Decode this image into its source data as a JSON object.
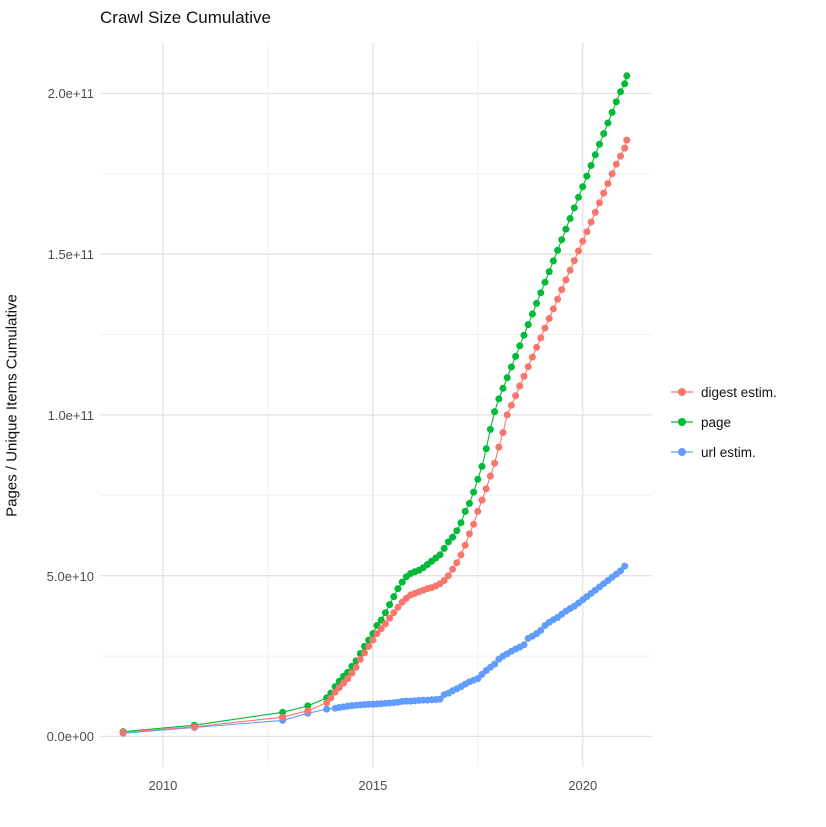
{
  "title": "Crawl Size Cumulative",
  "y_axis": {
    "label": "Pages / Unique Items Cumulative",
    "ticks": [
      {
        "label": "0.0e+00",
        "value_e10": 0
      },
      {
        "label": "5.0e+10",
        "value_e10": 5
      },
      {
        "label": "1.0e+11",
        "value_e10": 10
      },
      {
        "label": "1.5e+11",
        "value_e10": 15
      },
      {
        "label": "2.0e+11",
        "value_e10": 20
      }
    ]
  },
  "x_axis": {
    "ticks": [
      {
        "label": "2010",
        "value": 2010
      },
      {
        "label": "2015",
        "value": 2015
      },
      {
        "label": "2020",
        "value": 2020
      }
    ]
  },
  "legend": {
    "position": "right",
    "items": [
      {
        "label": "digest estim.",
        "color": "#F8766D"
      },
      {
        "label": "page",
        "color": "#00BA38"
      },
      {
        "label": "url estim.",
        "color": "#619CFF"
      }
    ]
  },
  "chart_data": {
    "type": "line",
    "title": "Crawl Size Cumulative",
    "xlabel": "",
    "ylabel": "Pages / Unique Items Cumulative",
    "value_scale": "values are in units of 1e10 pages/items",
    "xlim": [
      2008.5,
      2021.65
    ],
    "ylim_e10": [
      -0.95,
      21.6
    ],
    "grid": true,
    "x_major_gridlines": [
      2010,
      2015,
      2020
    ],
    "x_minor_gridlines": [
      2012.5,
      2017.5
    ],
    "y_major_gridlines_e10": [
      0,
      5,
      10,
      15,
      20
    ],
    "y_minor_gridlines_e10": [
      2.5,
      7.5,
      12.5,
      17.5
    ],
    "legend_position": "right",
    "series": [
      {
        "name": "digest estim.",
        "color": "#F8766D",
        "points_year_value1e10": [
          [
            2009.05,
            0.13
          ],
          [
            2010.75,
            0.3
          ],
          [
            2012.85,
            0.6
          ],
          [
            2013.45,
            0.8
          ],
          [
            2013.9,
            1.05
          ],
          [
            2014.0,
            1.2
          ],
          [
            2014.1,
            1.38
          ],
          [
            2014.2,
            1.52
          ],
          [
            2014.3,
            1.66
          ],
          [
            2014.4,
            1.8
          ],
          [
            2014.5,
            1.97
          ],
          [
            2014.6,
            2.15
          ],
          [
            2014.7,
            2.4
          ],
          [
            2014.8,
            2.6
          ],
          [
            2014.9,
            2.8
          ],
          [
            2015.0,
            3.0
          ],
          [
            2015.1,
            3.2
          ],
          [
            2015.2,
            3.35
          ],
          [
            2015.3,
            3.5
          ],
          [
            2015.4,
            3.68
          ],
          [
            2015.5,
            3.85
          ],
          [
            2015.6,
            4.02
          ],
          [
            2015.7,
            4.18
          ],
          [
            2015.8,
            4.3
          ],
          [
            2015.9,
            4.4
          ],
          [
            2016.0,
            4.45
          ],
          [
            2016.1,
            4.5
          ],
          [
            2016.2,
            4.55
          ],
          [
            2016.3,
            4.6
          ],
          [
            2016.4,
            4.63
          ],
          [
            2016.5,
            4.68
          ],
          [
            2016.6,
            4.75
          ],
          [
            2016.7,
            4.85
          ],
          [
            2016.8,
            5.0
          ],
          [
            2016.9,
            5.2
          ],
          [
            2017.0,
            5.4
          ],
          [
            2017.1,
            5.65
          ],
          [
            2017.2,
            5.95
          ],
          [
            2017.3,
            6.3
          ],
          [
            2017.4,
            6.6
          ],
          [
            2017.5,
            7.0
          ],
          [
            2017.6,
            7.35
          ],
          [
            2017.7,
            7.7
          ],
          [
            2017.8,
            8.1
          ],
          [
            2017.9,
            8.5
          ],
          [
            2018.0,
            9.0
          ],
          [
            2018.1,
            9.45
          ],
          [
            2018.2,
            10.0
          ],
          [
            2018.3,
            10.3
          ],
          [
            2018.4,
            10.6
          ],
          [
            2018.5,
            10.9
          ],
          [
            2018.6,
            11.2
          ],
          [
            2018.7,
            11.5
          ],
          [
            2018.8,
            11.8
          ],
          [
            2018.9,
            12.1
          ],
          [
            2019.0,
            12.4
          ],
          [
            2019.1,
            12.7
          ],
          [
            2019.2,
            13.0
          ],
          [
            2019.3,
            13.3
          ],
          [
            2019.4,
            13.6
          ],
          [
            2019.5,
            13.9
          ],
          [
            2019.6,
            14.2
          ],
          [
            2019.7,
            14.5
          ],
          [
            2019.8,
            14.8
          ],
          [
            2019.9,
            15.1
          ],
          [
            2020.0,
            15.4
          ],
          [
            2020.1,
            15.7
          ],
          [
            2020.2,
            16.0
          ],
          [
            2020.3,
            16.3
          ],
          [
            2020.4,
            16.6
          ],
          [
            2020.5,
            16.9
          ],
          [
            2020.6,
            17.2
          ],
          [
            2020.7,
            17.5
          ],
          [
            2020.8,
            17.8
          ],
          [
            2020.9,
            18.05
          ],
          [
            2021.0,
            18.3
          ],
          [
            2021.05,
            18.55
          ]
        ]
      },
      {
        "name": "page",
        "color": "#00BA38",
        "points_year_value1e10": [
          [
            2009.05,
            0.15
          ],
          [
            2010.75,
            0.35
          ],
          [
            2012.85,
            0.75
          ],
          [
            2013.45,
            0.95
          ],
          [
            2013.9,
            1.2
          ],
          [
            2014.0,
            1.35
          ],
          [
            2014.1,
            1.55
          ],
          [
            2014.2,
            1.72
          ],
          [
            2014.3,
            1.87
          ],
          [
            2014.4,
            2.0
          ],
          [
            2014.5,
            2.18
          ],
          [
            2014.6,
            2.35
          ],
          [
            2014.7,
            2.58
          ],
          [
            2014.8,
            2.8
          ],
          [
            2014.9,
            3.0
          ],
          [
            2015.0,
            3.2
          ],
          [
            2015.1,
            3.45
          ],
          [
            2015.2,
            3.62
          ],
          [
            2015.3,
            3.85
          ],
          [
            2015.4,
            4.1
          ],
          [
            2015.5,
            4.35
          ],
          [
            2015.6,
            4.6
          ],
          [
            2015.7,
            4.8
          ],
          [
            2015.8,
            4.97
          ],
          [
            2015.9,
            5.07
          ],
          [
            2016.0,
            5.12
          ],
          [
            2016.1,
            5.17
          ],
          [
            2016.2,
            5.25
          ],
          [
            2016.3,
            5.35
          ],
          [
            2016.4,
            5.45
          ],
          [
            2016.5,
            5.55
          ],
          [
            2016.6,
            5.65
          ],
          [
            2016.7,
            5.85
          ],
          [
            2016.8,
            6.05
          ],
          [
            2016.9,
            6.2
          ],
          [
            2017.0,
            6.4
          ],
          [
            2017.1,
            6.65
          ],
          [
            2017.2,
            7.0
          ],
          [
            2017.3,
            7.25
          ],
          [
            2017.4,
            7.6
          ],
          [
            2017.5,
            8.0
          ],
          [
            2017.6,
            8.4
          ],
          [
            2017.7,
            8.95
          ],
          [
            2017.8,
            9.55
          ],
          [
            2017.9,
            10.1
          ],
          [
            2018.0,
            10.5
          ],
          [
            2018.1,
            10.83
          ],
          [
            2018.2,
            11.16
          ],
          [
            2018.3,
            11.49
          ],
          [
            2018.4,
            11.82
          ],
          [
            2018.5,
            12.15
          ],
          [
            2018.6,
            12.48
          ],
          [
            2018.7,
            12.81
          ],
          [
            2018.8,
            13.14
          ],
          [
            2018.9,
            13.47
          ],
          [
            2019.0,
            13.8
          ],
          [
            2019.1,
            14.13
          ],
          [
            2019.2,
            14.46
          ],
          [
            2019.3,
            14.79
          ],
          [
            2019.4,
            15.12
          ],
          [
            2019.5,
            15.45
          ],
          [
            2019.6,
            15.78
          ],
          [
            2019.7,
            16.11
          ],
          [
            2019.8,
            16.44
          ],
          [
            2019.9,
            16.77
          ],
          [
            2020.0,
            17.1
          ],
          [
            2020.1,
            17.43
          ],
          [
            2020.2,
            17.76
          ],
          [
            2020.3,
            18.09
          ],
          [
            2020.4,
            18.42
          ],
          [
            2020.5,
            18.75
          ],
          [
            2020.6,
            19.08
          ],
          [
            2020.7,
            19.41
          ],
          [
            2020.8,
            19.74
          ],
          [
            2020.9,
            20.05
          ],
          [
            2021.0,
            20.3
          ],
          [
            2021.05,
            20.55
          ]
        ]
      },
      {
        "name": "url estim.",
        "color": "#619CFF",
        "points_year_value1e10": [
          [
            2009.05,
            0.1
          ],
          [
            2010.75,
            0.28
          ],
          [
            2012.85,
            0.5
          ],
          [
            2013.45,
            0.72
          ],
          [
            2013.9,
            0.85
          ],
          [
            2014.1,
            0.88
          ],
          [
            2014.2,
            0.9
          ],
          [
            2014.3,
            0.92
          ],
          [
            2014.4,
            0.94
          ],
          [
            2014.5,
            0.96
          ],
          [
            2014.6,
            0.97
          ],
          [
            2014.7,
            0.98
          ],
          [
            2014.8,
            0.99
          ],
          [
            2014.9,
            1.0
          ],
          [
            2015.0,
            1.0
          ],
          [
            2015.1,
            1.01
          ],
          [
            2015.2,
            1.02
          ],
          [
            2015.3,
            1.03
          ],
          [
            2015.4,
            1.04
          ],
          [
            2015.5,
            1.05
          ],
          [
            2015.6,
            1.07
          ],
          [
            2015.7,
            1.09
          ],
          [
            2015.8,
            1.1
          ],
          [
            2015.9,
            1.1
          ],
          [
            2016.0,
            1.11
          ],
          [
            2016.1,
            1.12
          ],
          [
            2016.2,
            1.13
          ],
          [
            2016.3,
            1.13
          ],
          [
            2016.4,
            1.14
          ],
          [
            2016.5,
            1.15
          ],
          [
            2016.6,
            1.16
          ],
          [
            2016.7,
            1.3
          ],
          [
            2016.8,
            1.35
          ],
          [
            2016.9,
            1.42
          ],
          [
            2017.0,
            1.48
          ],
          [
            2017.1,
            1.55
          ],
          [
            2017.2,
            1.63
          ],
          [
            2017.3,
            1.7
          ],
          [
            2017.4,
            1.75
          ],
          [
            2017.5,
            1.8
          ],
          [
            2017.6,
            1.93
          ],
          [
            2017.7,
            2.05
          ],
          [
            2017.8,
            2.15
          ],
          [
            2017.9,
            2.25
          ],
          [
            2018.0,
            2.4
          ],
          [
            2018.1,
            2.5
          ],
          [
            2018.2,
            2.57
          ],
          [
            2018.3,
            2.65
          ],
          [
            2018.4,
            2.72
          ],
          [
            2018.5,
            2.78
          ],
          [
            2018.6,
            2.85
          ],
          [
            2018.7,
            3.05
          ],
          [
            2018.8,
            3.12
          ],
          [
            2018.9,
            3.2
          ],
          [
            2019.0,
            3.3
          ],
          [
            2019.1,
            3.45
          ],
          [
            2019.2,
            3.55
          ],
          [
            2019.3,
            3.63
          ],
          [
            2019.4,
            3.7
          ],
          [
            2019.5,
            3.8
          ],
          [
            2019.6,
            3.9
          ],
          [
            2019.7,
            3.98
          ],
          [
            2019.8,
            4.05
          ],
          [
            2019.9,
            4.15
          ],
          [
            2020.0,
            4.25
          ],
          [
            2020.1,
            4.35
          ],
          [
            2020.2,
            4.45
          ],
          [
            2020.3,
            4.55
          ],
          [
            2020.4,
            4.65
          ],
          [
            2020.5,
            4.75
          ],
          [
            2020.6,
            4.85
          ],
          [
            2020.7,
            4.95
          ],
          [
            2020.8,
            5.05
          ],
          [
            2020.9,
            5.15
          ],
          [
            2021.0,
            5.3
          ]
        ]
      }
    ]
  },
  "style": {
    "major_grid_color": "#e3e3e3",
    "minor_grid_color": "#efefef",
    "background": "#ffffff"
  }
}
